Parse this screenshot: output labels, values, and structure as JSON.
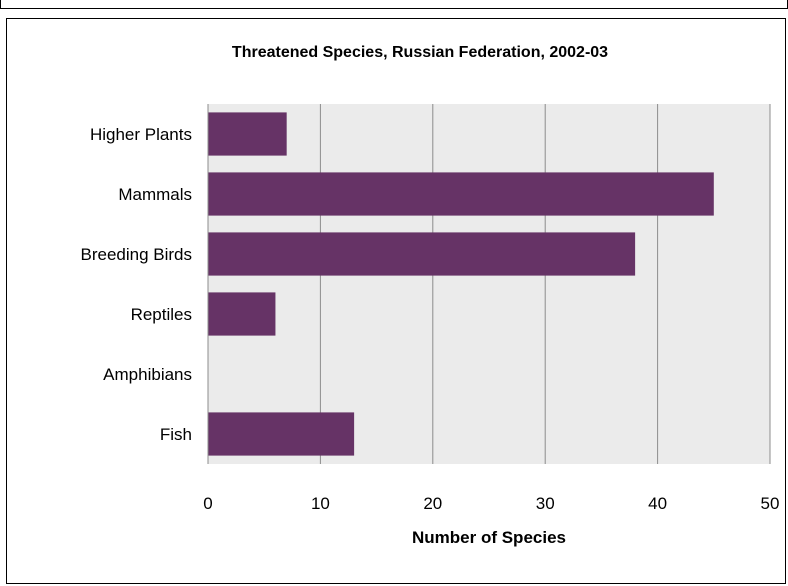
{
  "chart_data": {
    "type": "bar",
    "orientation": "horizontal",
    "title": "Threatened Species, Russian Federation, 2002-03",
    "xlabel": "Number of Species",
    "ylabel": "",
    "categories": [
      "Higher Plants",
      "Mammals",
      "Breeding Birds",
      "Reptiles",
      "Amphibians",
      "Fish"
    ],
    "values": [
      7,
      45,
      38,
      6,
      0,
      13
    ],
    "xlim": [
      0,
      50
    ],
    "xticks": [
      "0",
      "10",
      "20",
      "30",
      "40",
      "50"
    ],
    "grid": true,
    "legend": "none",
    "colors": {
      "bar": "#663366",
      "plot_background": "#ebebeb",
      "gridline": "#8c8c8c"
    }
  }
}
